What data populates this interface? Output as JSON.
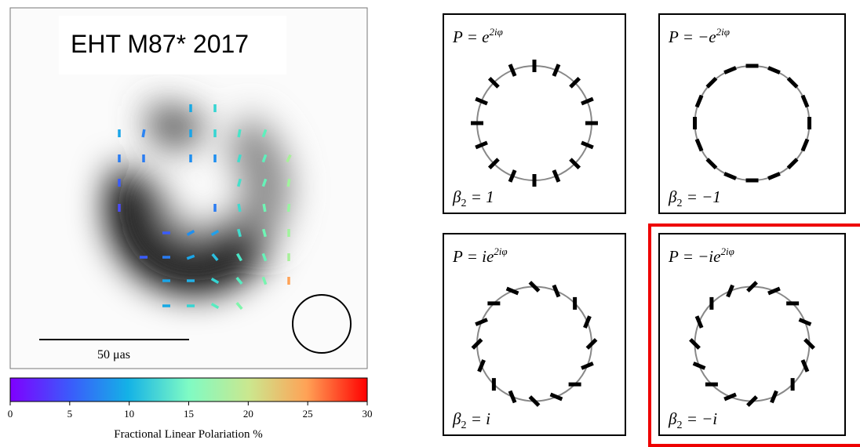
{
  "title": "EHT M87* 2017",
  "scale_bar": "50 μas",
  "colorbar": {
    "lim": [
      0,
      30
    ],
    "ticks": [
      0,
      5,
      10,
      15,
      20,
      25,
      30
    ],
    "label": "Fractional Linear Polariation %"
  },
  "panels": [
    {
      "formula": {
        "lhs": "P = ",
        "base": "e",
        "sup": "2iφ"
      },
      "beta": {
        "symbol": "β",
        "sub": "2",
        "rhs": " = 1"
      }
    },
    {
      "formula": {
        "lhs": "P = −",
        "base": "e",
        "sup": "2iφ"
      },
      "beta": {
        "symbol": "β",
        "sub": "2",
        "rhs": " = −1"
      }
    },
    {
      "formula": {
        "lhs": "P = i",
        "base": "e",
        "sup": "2iφ"
      },
      "beta": {
        "symbol": "β",
        "sub": "2",
        "rhs": " = i"
      }
    },
    {
      "formula": {
        "lhs": "P = −i",
        "base": "e",
        "sup": "2iφ"
      },
      "beta": {
        "symbol": "β",
        "sub": "2",
        "rhs": " = −i"
      }
    }
  ]
}
